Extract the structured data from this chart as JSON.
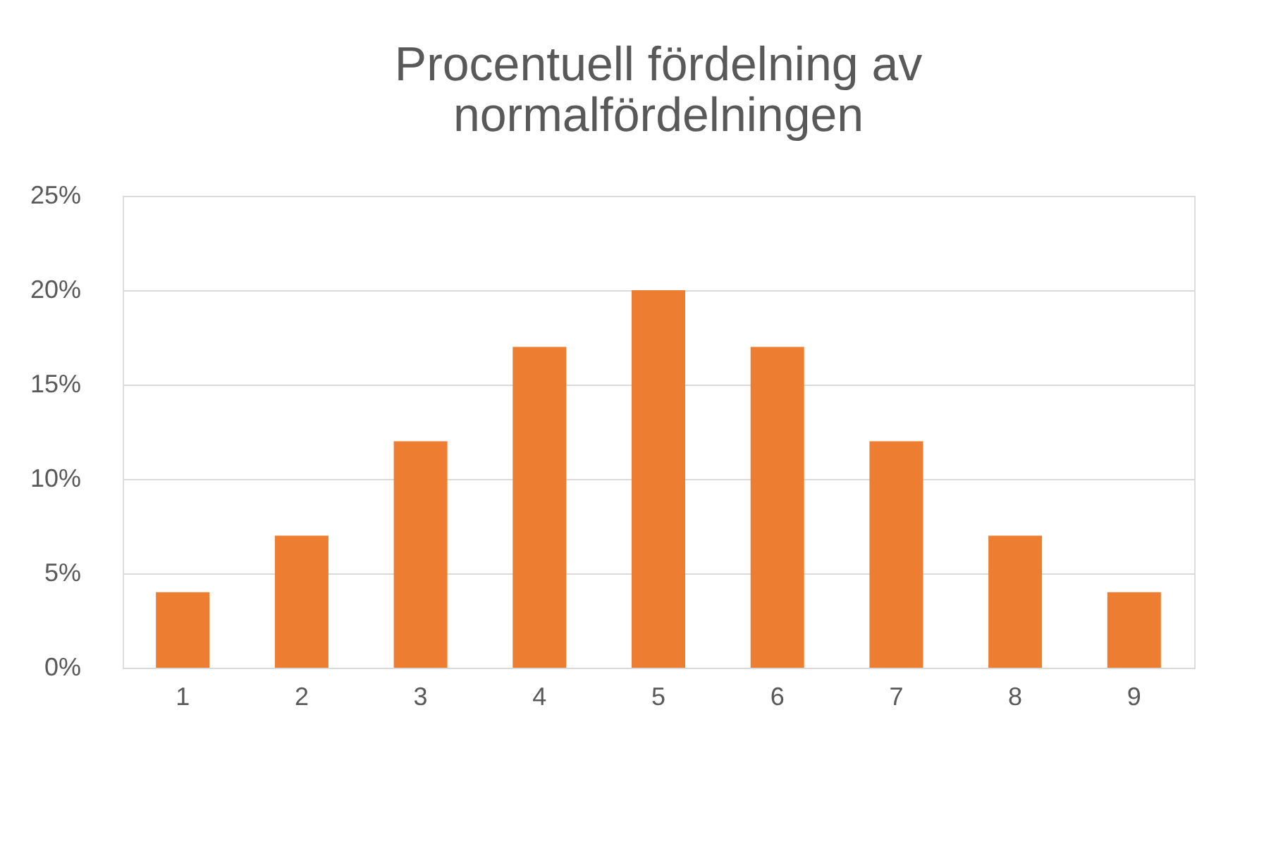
{
  "chart_data": {
    "type": "bar",
    "title": "Procentuell fördelning av normalfördelningen",
    "categories": [
      "1",
      "2",
      "3",
      "4",
      "5",
      "6",
      "7",
      "8",
      "9"
    ],
    "values": [
      4,
      7,
      12,
      17,
      20,
      17,
      12,
      7,
      4
    ],
    "color": "#ed7d31",
    "ylim": [
      0,
      25
    ],
    "yticks": [
      {
        "value": 0,
        "label": "0%"
      },
      {
        "value": 5,
        "label": "5%"
      },
      {
        "value": 10,
        "label": "10%"
      },
      {
        "value": 15,
        "label": "15%"
      },
      {
        "value": 20,
        "label": "20%"
      },
      {
        "value": 25,
        "label": "25%"
      }
    ],
    "grid": "y"
  }
}
